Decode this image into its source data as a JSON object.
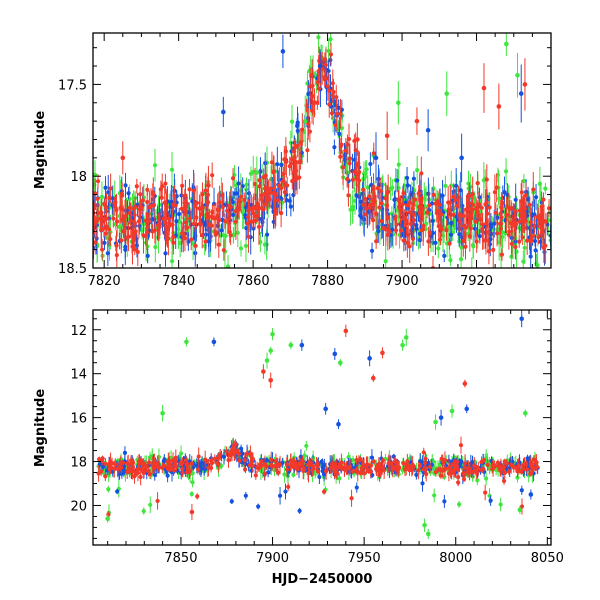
{
  "colors": {
    "blue": "#1452e0",
    "green": "#3ee63e",
    "red": "#f2392a",
    "axis": "#000000"
  },
  "chart_data": [
    {
      "type": "scatter",
      "panel": "top",
      "title": "",
      "xlabel": "",
      "ylabel": "Magnitude",
      "xlim": [
        7817,
        7940
      ],
      "ylim": [
        18.5,
        17.22
      ],
      "y_inverted": true,
      "x_ticks": [
        7820,
        7840,
        7860,
        7880,
        7900,
        7920
      ],
      "y_ticks": [
        17.5,
        18,
        18.5
      ],
      "grid": false,
      "legend": "none",
      "series": [
        {
          "color": "blue",
          "error_bars": true,
          "description_free": true
        },
        {
          "color": "green",
          "error_bars": true
        },
        {
          "color": "red",
          "error_bars": true
        }
      ],
      "features": {
        "baseline_magnitude": 18.25,
        "peak": {
          "x": 7879,
          "y": 17.42
        },
        "rise_start": 7866,
        "decay_end": 7890,
        "outliers": [
          {
            "color": "blue",
            "x": 7852,
            "y": 17.65
          },
          {
            "color": "blue",
            "x": 7868,
            "y": 17.32
          },
          {
            "color": "blue",
            "x": 7878,
            "y": 17.4
          },
          {
            "color": "blue",
            "x": 7893,
            "y": 17.9
          },
          {
            "color": "blue",
            "x": 7907,
            "y": 17.75
          },
          {
            "color": "blue",
            "x": 7916,
            "y": 17.9
          },
          {
            "color": "blue",
            "x": 7932,
            "y": 17.55
          },
          {
            "color": "green",
            "x": 7861,
            "y": 17.98
          },
          {
            "color": "green",
            "x": 7874,
            "y": 17.7
          },
          {
            "color": "green",
            "x": 7899,
            "y": 17.6
          },
          {
            "color": "green",
            "x": 7912,
            "y": 17.55
          },
          {
            "color": "green",
            "x": 7928,
            "y": 17.28
          },
          {
            "color": "green",
            "x": 7931,
            "y": 17.45
          },
          {
            "color": "red",
            "x": 7825,
            "y": 17.9
          },
          {
            "color": "red",
            "x": 7848,
            "y": 18.05
          },
          {
            "color": "red",
            "x": 7888,
            "y": 17.8
          },
          {
            "color": "red",
            "x": 7896,
            "y": 17.78
          },
          {
            "color": "red",
            "x": 7904,
            "y": 17.7
          },
          {
            "color": "red",
            "x": 7922,
            "y": 17.52
          },
          {
            "color": "red",
            "x": 7926,
            "y": 17.62
          },
          {
            "color": "red",
            "x": 7933,
            "y": 17.5
          }
        ]
      }
    },
    {
      "type": "scatter",
      "panel": "bottom",
      "title": "",
      "xlabel": "HJD−2450000",
      "ylabel": "Magnitude",
      "xlim": [
        7802,
        8052
      ],
      "ylim": [
        21.8,
        11.1
      ],
      "y_inverted": true,
      "x_ticks": [
        7850,
        7900,
        7950,
        8000,
        8050
      ],
      "y_ticks": [
        12,
        14,
        16,
        18,
        20
      ],
      "grid": false,
      "legend": "none",
      "series": [
        {
          "color": "blue",
          "error_bars": true
        },
        {
          "color": "green",
          "error_bars": true
        },
        {
          "color": "red",
          "error_bars": true
        }
      ],
      "features": {
        "baseline_magnitude": 18.25,
        "peak": {
          "x": 7879,
          "y": 17.42
        },
        "outliers": [
          {
            "color": "green",
            "x": 7853,
            "y": 12.55
          },
          {
            "color": "blue",
            "x": 7868,
            "y": 12.55
          },
          {
            "color": "green",
            "x": 7900,
            "y": 12.2
          },
          {
            "color": "green",
            "x": 7899,
            "y": 12.95
          },
          {
            "color": "green",
            "x": 7897,
            "y": 13.4
          },
          {
            "color": "green",
            "x": 7910,
            "y": 12.7
          },
          {
            "color": "blue",
            "x": 7916,
            "y": 12.7
          },
          {
            "color": "blue",
            "x": 7934,
            "y": 13.1
          },
          {
            "color": "red",
            "x": 7940,
            "y": 12.05
          },
          {
            "color": "red",
            "x": 7895,
            "y": 13.9
          },
          {
            "color": "red",
            "x": 7899,
            "y": 14.3
          },
          {
            "color": "green",
            "x": 7937,
            "y": 13.5
          },
          {
            "color": "blue",
            "x": 7953,
            "y": 13.3
          },
          {
            "color": "red",
            "x": 7960,
            "y": 13.05
          },
          {
            "color": "green",
            "x": 7973,
            "y": 12.35
          },
          {
            "color": "green",
            "x": 7971,
            "y": 12.7
          },
          {
            "color": "red",
            "x": 7955,
            "y": 14.2
          },
          {
            "color": "red",
            "x": 8005,
            "y": 14.45
          },
          {
            "color": "blue",
            "x": 8036,
            "y": 11.5
          },
          {
            "color": "green",
            "x": 7840,
            "y": 15.8
          },
          {
            "color": "blue",
            "x": 7929,
            "y": 15.6
          },
          {
            "color": "blue",
            "x": 7936,
            "y": 16.3
          },
          {
            "color": "green",
            "x": 7989,
            "y": 16.2
          },
          {
            "color": "blue",
            "x": 7992,
            "y": 16.0
          },
          {
            "color": "green",
            "x": 7998,
            "y": 15.7
          },
          {
            "color": "blue",
            "x": 8006,
            "y": 15.6
          },
          {
            "color": "green",
            "x": 8038,
            "y": 15.8
          },
          {
            "color": "green",
            "x": 7810,
            "y": 20.6
          },
          {
            "color": "green",
            "x": 7985,
            "y": 21.3
          },
          {
            "color": "green",
            "x": 7983,
            "y": 20.9
          },
          {
            "color": "red",
            "x": 7856,
            "y": 20.3
          },
          {
            "color": "blue",
            "x": 8041,
            "y": 19.5
          },
          {
            "color": "green",
            "x": 8035,
            "y": 20.2
          }
        ]
      }
    }
  ]
}
